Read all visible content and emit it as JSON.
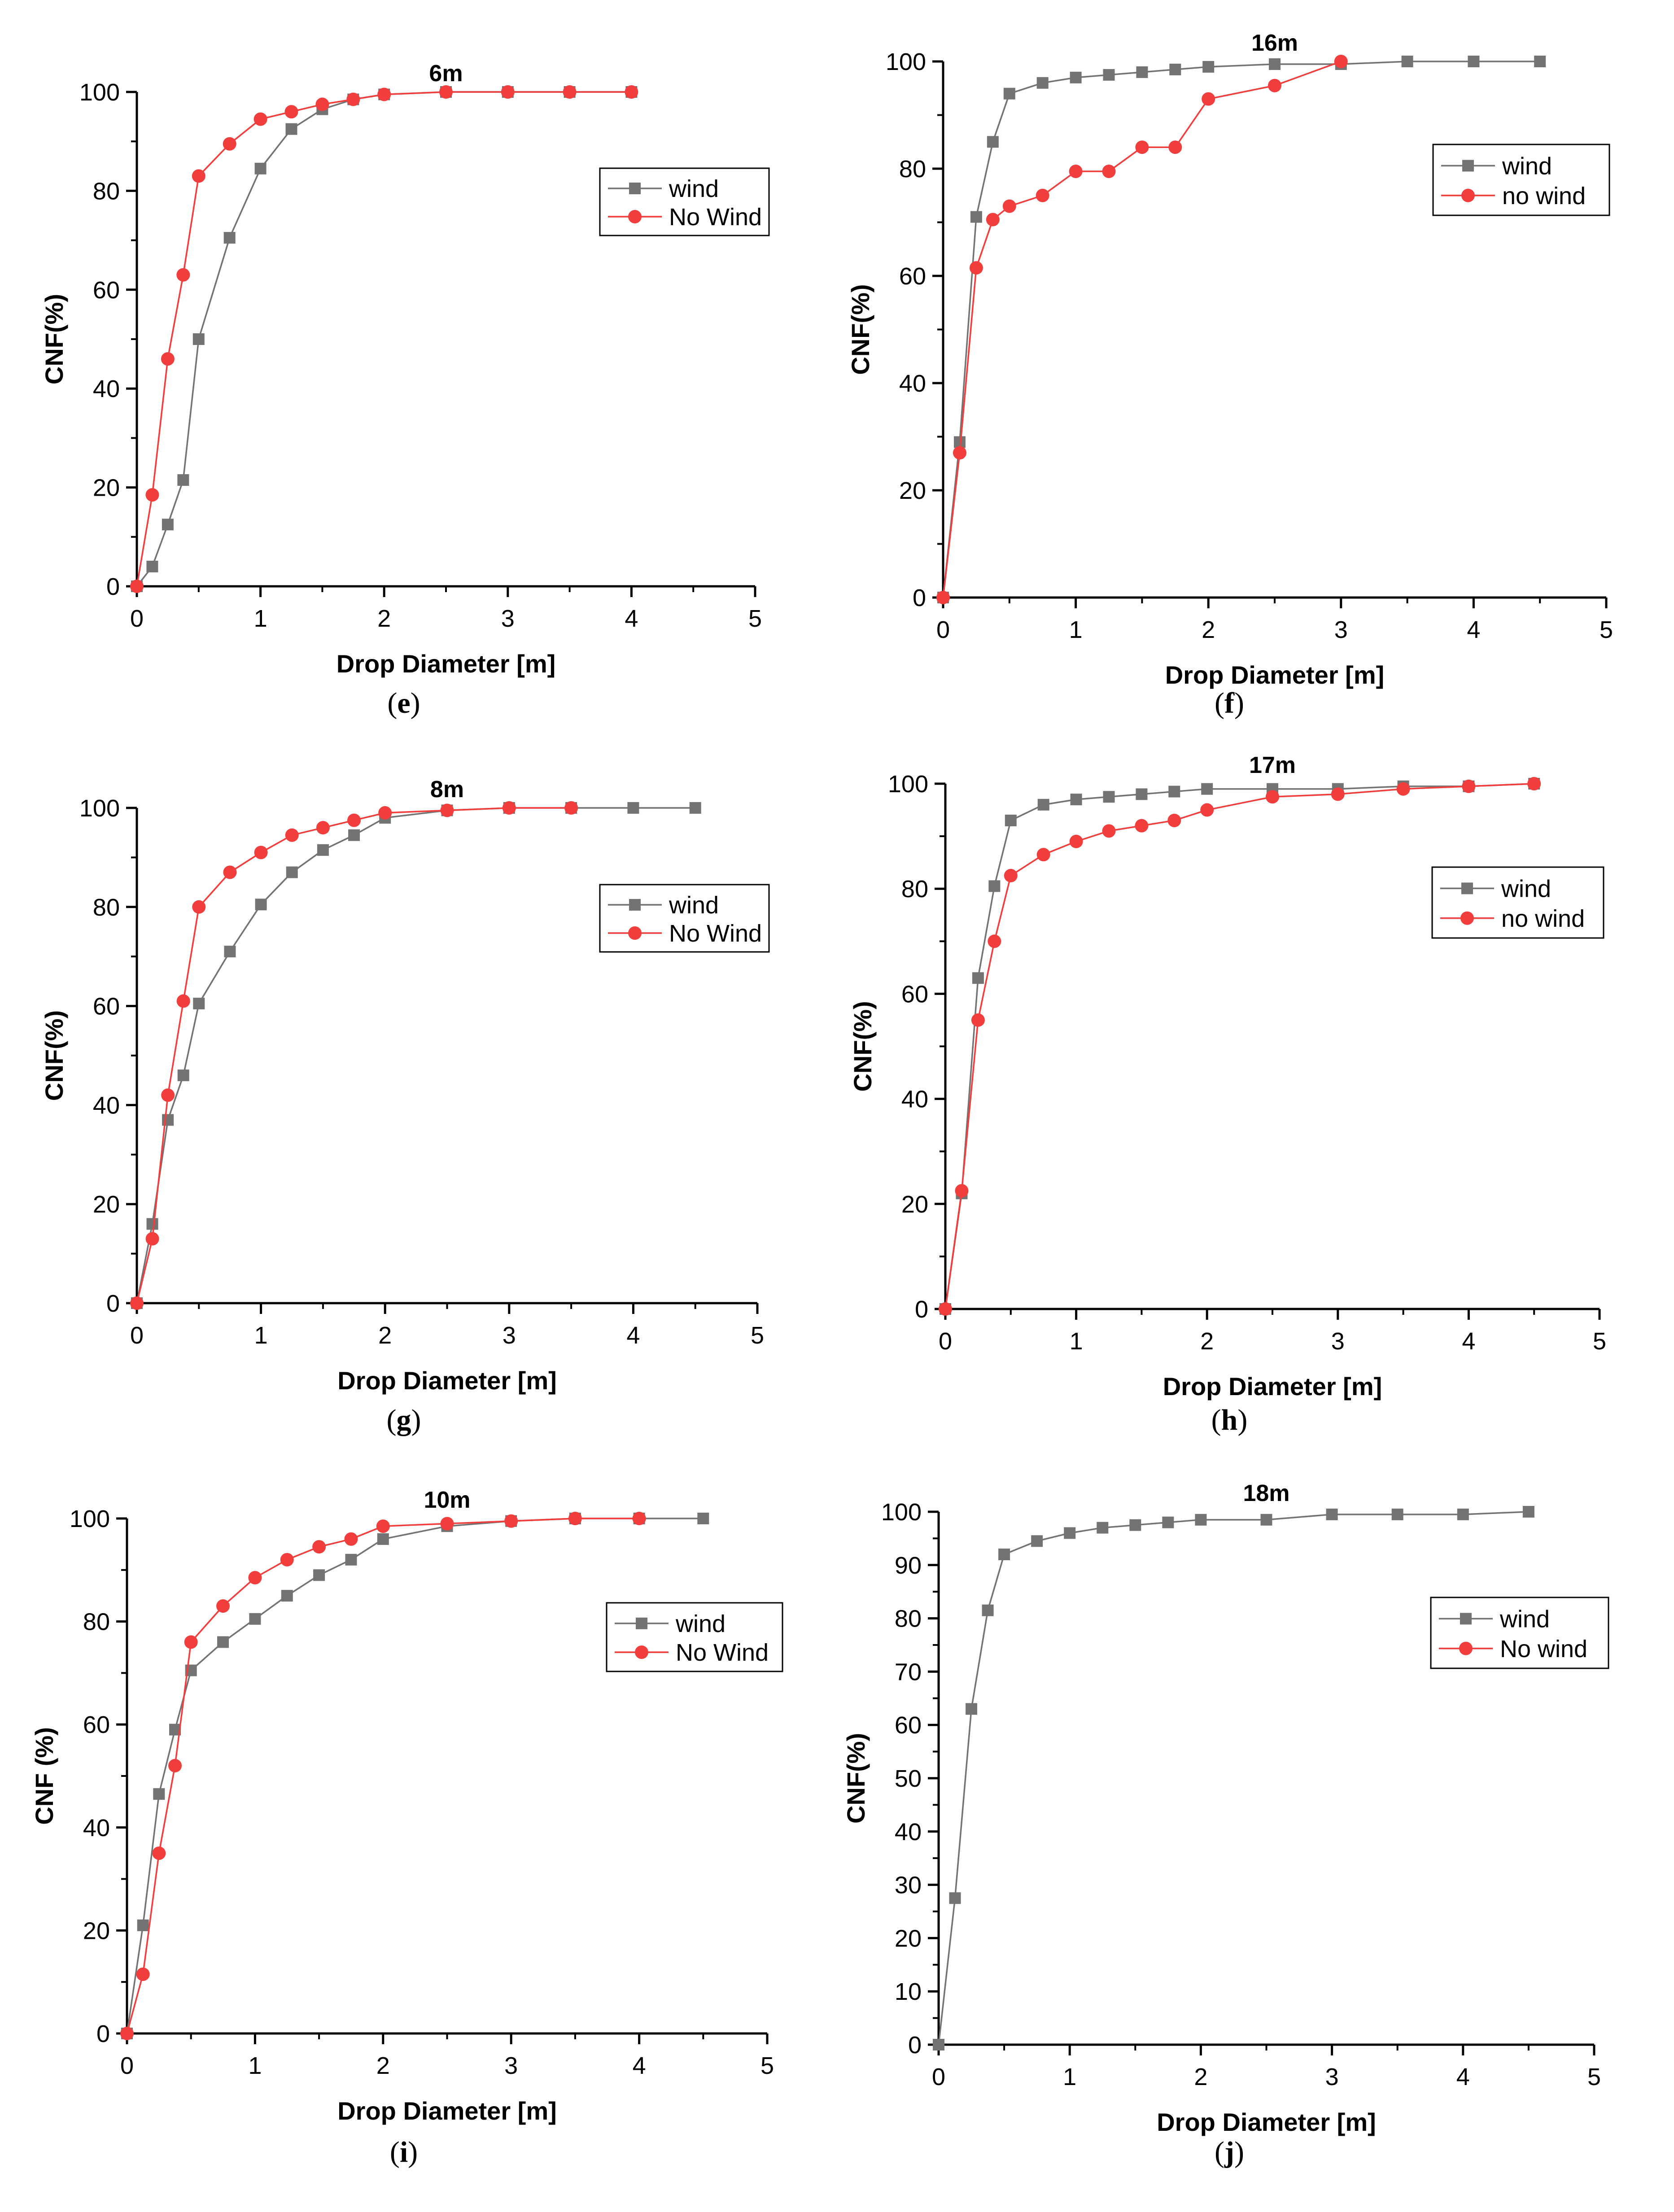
{
  "chart_data": [
    {
      "type": "line",
      "caption_letter": "e",
      "title": "6m",
      "xlabel": "Drop Diameter [m]",
      "ylabel": "CNF(%)",
      "xlim": [
        0,
        5
      ],
      "ylim": [
        0,
        100
      ],
      "xticks": [
        0,
        1,
        2,
        3,
        4,
        5
      ],
      "yticks": [
        0,
        20,
        40,
        60,
        80,
        100
      ],
      "grid": false,
      "legend_position": "right",
      "series": [
        {
          "name": "wind",
          "color": "#737373",
          "marker": "square",
          "x": [
            0,
            0.125,
            0.25,
            0.375,
            0.5,
            0.75,
            1,
            1.25,
            1.5,
            1.75,
            2,
            2.5,
            3,
            3.5,
            4
          ],
          "y": [
            0,
            4,
            12.5,
            21.5,
            50,
            70.5,
            84.5,
            92.5,
            96.5,
            98.5,
            99.5,
            100,
            100,
            100,
            100
          ]
        },
        {
          "name": "No Wind",
          "color": "#f23d3d",
          "marker": "circle",
          "x": [
            0,
            0.125,
            0.25,
            0.375,
            0.5,
            0.75,
            1,
            1.25,
            1.5,
            1.75,
            2,
            2.5,
            3,
            3.5,
            4
          ],
          "y": [
            0,
            18.5,
            46,
            63,
            83,
            89.5,
            94.5,
            96,
            97.5,
            98.5,
            99.5,
            100,
            100,
            100,
            100
          ]
        }
      ]
    },
    {
      "type": "line",
      "caption_letter": "f",
      "title": "16m",
      "xlabel": "Drop Diameter [m]",
      "ylabel": "CNF(%)",
      "xlim": [
        0,
        5
      ],
      "ylim": [
        0,
        100
      ],
      "xticks": [
        0,
        1,
        2,
        3,
        4,
        5
      ],
      "yticks": [
        0,
        20,
        40,
        60,
        80,
        100
      ],
      "grid": false,
      "legend_position": "right",
      "series": [
        {
          "name": "wind",
          "color": "#737373",
          "marker": "square",
          "x": [
            0,
            0.125,
            0.25,
            0.375,
            0.5,
            0.75,
            1,
            1.25,
            1.5,
            1.75,
            2,
            2.5,
            3,
            3.5,
            4,
            4.5
          ],
          "y": [
            0,
            29,
            71,
            85,
            94,
            96,
            97,
            97.5,
            98,
            98.5,
            99,
            99.5,
            99.5,
            100,
            100,
            100
          ]
        },
        {
          "name": "no wind",
          "color": "#f23d3d",
          "marker": "circle",
          "x": [
            0,
            0.125,
            0.25,
            0.375,
            0.5,
            0.75,
            1,
            1.25,
            1.5,
            1.75,
            2,
            2.5,
            3
          ],
          "y": [
            0,
            27,
            61.5,
            70.5,
            73,
            75,
            79.5,
            79.5,
            84,
            84,
            93,
            95.5,
            100
          ]
        }
      ]
    },
    {
      "type": "line",
      "caption_letter": "g",
      "title": "8m",
      "xlabel": "Drop Diameter [m]",
      "ylabel": "CNF(%)",
      "xlim": [
        0,
        5
      ],
      "ylim": [
        0,
        100
      ],
      "xticks": [
        0,
        1,
        2,
        3,
        4,
        5
      ],
      "yticks": [
        0,
        20,
        40,
        60,
        80,
        100
      ],
      "grid": false,
      "legend_position": "right",
      "series": [
        {
          "name": "wind",
          "color": "#737373",
          "marker": "square",
          "x": [
            0,
            0.125,
            0.25,
            0.375,
            0.5,
            0.75,
            1,
            1.25,
            1.5,
            1.75,
            2,
            2.5,
            3,
            3.5,
            4,
            4.5
          ],
          "y": [
            0,
            16,
            37,
            46,
            60.5,
            71,
            80.5,
            87,
            91.5,
            94.5,
            98,
            99.5,
            100,
            100,
            100,
            100
          ]
        },
        {
          "name": "No Wind",
          "color": "#f23d3d",
          "marker": "circle",
          "x": [
            0,
            0.125,
            0.25,
            0.375,
            0.5,
            0.75,
            1,
            1.25,
            1.5,
            1.75,
            2,
            2.5,
            3,
            3.5
          ],
          "y": [
            0,
            13,
            42,
            61,
            80,
            87,
            91,
            94.5,
            96,
            97.5,
            99,
            99.5,
            100,
            100
          ]
        }
      ]
    },
    {
      "type": "line",
      "caption_letter": "h",
      "title": "17m",
      "xlabel": "Drop Diameter [m]",
      "ylabel": "CNF(%)",
      "xlim": [
        0,
        5
      ],
      "ylim": [
        0,
        100
      ],
      "xticks": [
        0,
        1,
        2,
        3,
        4,
        5
      ],
      "yticks": [
        0,
        20,
        40,
        60,
        80,
        100
      ],
      "grid": false,
      "legend_position": "right",
      "series": [
        {
          "name": "wind",
          "color": "#737373",
          "marker": "square",
          "x": [
            0,
            0.125,
            0.25,
            0.375,
            0.5,
            0.75,
            1,
            1.25,
            1.5,
            1.75,
            2,
            2.5,
            3,
            3.5,
            4,
            4.5
          ],
          "y": [
            0,
            22,
            63,
            80.5,
            93,
            96,
            97,
            97.5,
            98,
            98.5,
            99,
            99,
            99,
            99.5,
            99.5,
            100
          ]
        },
        {
          "name": "no wind",
          "color": "#f23d3d",
          "marker": "circle",
          "x": [
            0,
            0.125,
            0.25,
            0.375,
            0.5,
            0.75,
            1,
            1.25,
            1.5,
            1.75,
            2,
            2.5,
            3,
            3.5,
            4,
            4.5
          ],
          "y": [
            0,
            22.5,
            55,
            70,
            82.5,
            86.5,
            89,
            91,
            92,
            93,
            95,
            97.5,
            98,
            99,
            99.5,
            100
          ]
        }
      ]
    },
    {
      "type": "line",
      "caption_letter": "i",
      "title": "10m",
      "xlabel": "Drop Diameter [m]",
      "ylabel": "CNF (%)",
      "xlim": [
        0,
        5
      ],
      "ylim": [
        0,
        100
      ],
      "xticks": [
        0,
        1,
        2,
        3,
        4,
        5
      ],
      "yticks": [
        0,
        20,
        40,
        60,
        80,
        100
      ],
      "grid": false,
      "legend_position": "right",
      "series": [
        {
          "name": "wind",
          "color": "#737373",
          "marker": "square",
          "x": [
            0,
            0.125,
            0.25,
            0.375,
            0.5,
            0.75,
            1,
            1.25,
            1.5,
            1.75,
            2,
            2.5,
            3,
            3.5,
            4,
            4.5
          ],
          "y": [
            0,
            21,
            46.5,
            59,
            70.5,
            76,
            80.5,
            85,
            89,
            92,
            96,
            98.5,
            99.5,
            100,
            100,
            100
          ]
        },
        {
          "name": "No Wind",
          "color": "#f23d3d",
          "marker": "circle",
          "x": [
            0,
            0.125,
            0.25,
            0.375,
            0.5,
            0.75,
            1,
            1.25,
            1.5,
            1.75,
            2,
            2.5,
            3,
            3.5,
            4
          ],
          "y": [
            0,
            11.5,
            35,
            52,
            76,
            83,
            88.5,
            92,
            94.5,
            96,
            98.5,
            99,
            99.5,
            100,
            100
          ]
        }
      ]
    },
    {
      "type": "line",
      "caption_letter": "j",
      "title": "18m",
      "xlabel": "Drop Diameter [m]",
      "ylabel": "CNF(%)",
      "xlim": [
        0,
        5
      ],
      "ylim": [
        0,
        100
      ],
      "xticks": [
        0,
        1,
        2,
        3,
        4,
        5
      ],
      "yticks": [
        0,
        10,
        20,
        30,
        40,
        50,
        60,
        70,
        80,
        90,
        100
      ],
      "grid": false,
      "legend_position": "right",
      "series": [
        {
          "name": "wind",
          "color": "#737373",
          "marker": "square",
          "x": [
            0,
            0.125,
            0.25,
            0.375,
            0.5,
            0.75,
            1,
            1.25,
            1.5,
            1.75,
            2,
            2.5,
            3,
            3.5,
            4,
            4.5
          ],
          "y": [
            0,
            27.5,
            63,
            81.5,
            92,
            94.5,
            96,
            97,
            97.5,
            98,
            98.5,
            98.5,
            99.5,
            99.5,
            99.5,
            100
          ]
        },
        {
          "name": "No wind",
          "color": "#f23d3d",
          "marker": "circle",
          "x": [],
          "y": []
        }
      ]
    }
  ]
}
